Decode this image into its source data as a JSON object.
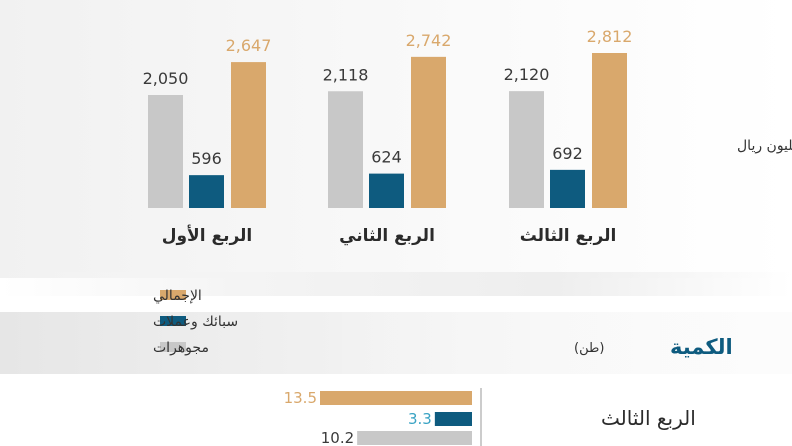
{
  "colors": {
    "total": "#D9A86C",
    "coins": "#0E5B7F",
    "jewelry": "#C8C8C8"
  },
  "unit_label": "مليون ريال",
  "legend": [
    {
      "key": "total",
      "label": "الإجمالي"
    },
    {
      "key": "coins",
      "label": "سبائك وعملات"
    },
    {
      "key": "jewelry",
      "label": "مجوهرات"
    }
  ],
  "quantity_section": {
    "title": "الكمية",
    "unit": "(طن)"
  },
  "chart_data": [
    {
      "type": "bar",
      "categories": [
        "الربع الأول",
        "الربع الثاني",
        "الربع الثالث"
      ],
      "series": [
        {
          "key": "jewelry",
          "values": [
            2050,
            2118,
            2120
          ],
          "labels": [
            "2,050",
            "2,118",
            "2,120"
          ]
        },
        {
          "key": "coins",
          "values": [
            596,
            624,
            692
          ],
          "labels": [
            "596",
            "624",
            "692"
          ]
        },
        {
          "key": "total",
          "values": [
            2647,
            2742,
            2812
          ],
          "labels": [
            "2,647",
            "2,742",
            "2,812"
          ]
        }
      ],
      "ylabel": "مليون ريال",
      "ylim": [
        0,
        2812
      ],
      "grid": false
    },
    {
      "type": "bar",
      "orientation": "horizontal",
      "categories": [
        "الربع الثالث"
      ],
      "series": [
        {
          "key": "total",
          "values": [
            13.5
          ],
          "labels": [
            "13.5"
          ]
        },
        {
          "key": "coins",
          "values": [
            3.3
          ],
          "labels": [
            "3.3"
          ]
        },
        {
          "key": "jewelry",
          "values": [
            10.2
          ],
          "labels": [
            "10.2"
          ]
        }
      ],
      "xlim": [
        0,
        13.5
      ]
    }
  ]
}
